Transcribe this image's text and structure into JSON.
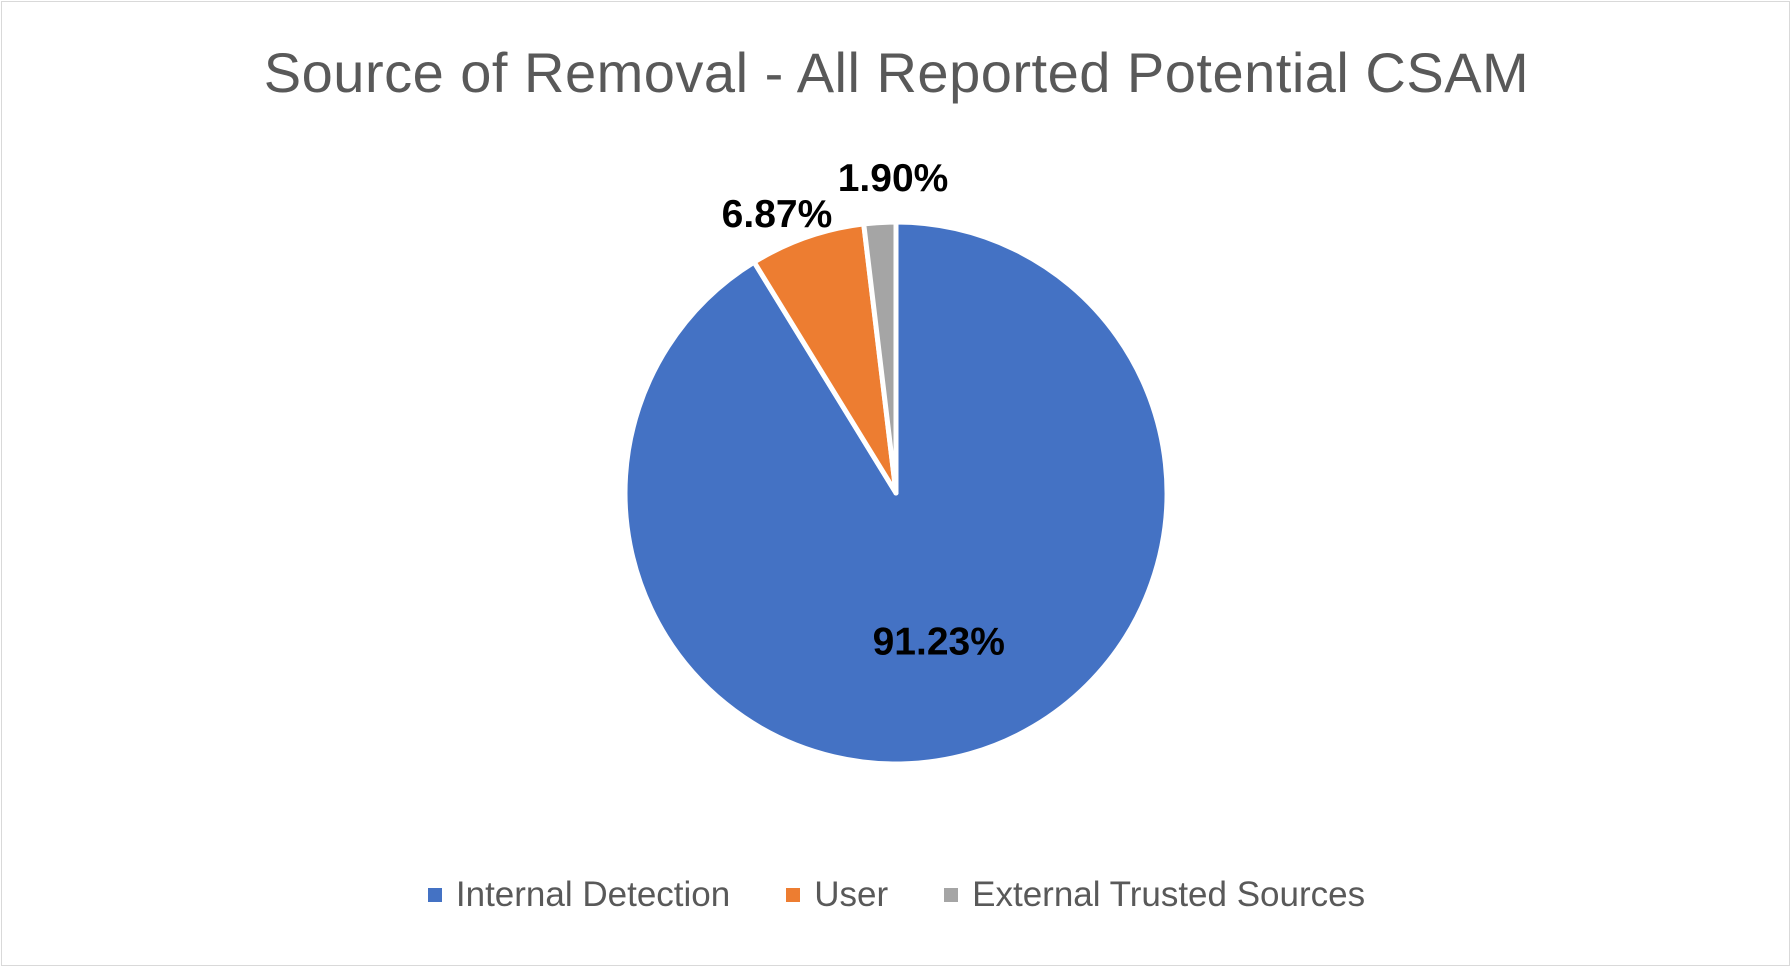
{
  "chart_data": {
    "type": "pie",
    "title": "Source of Removal - All Reported Potential CSAM",
    "categories": [
      "Internal Detection",
      "User",
      "External Trusted Sources"
    ],
    "values": [
      91.23,
      6.87,
      1.9
    ],
    "value_labels": [
      "91.23%",
      "6.87%",
      "1.90%"
    ],
    "colors": [
      "#4472C4",
      "#ED7D31",
      "#A5A5A5"
    ],
    "legend_position": "bottom"
  }
}
